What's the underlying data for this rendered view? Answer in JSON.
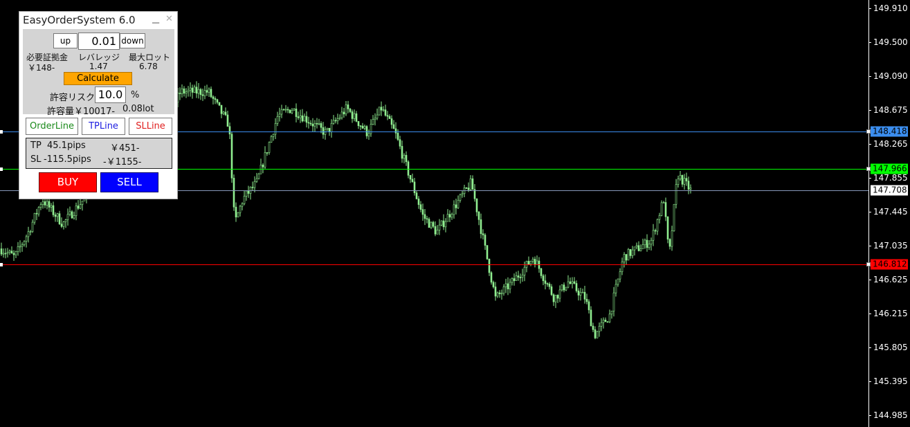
{
  "panel": {
    "title": "EasyOrderSystem 6.0",
    "minimize_icon": "minimize-icon",
    "close_icon": "close-icon",
    "lot": {
      "up_label": "up",
      "value": "0.01",
      "down_label": "down"
    },
    "margin": {
      "label": "必要証拠金",
      "value": "￥148-"
    },
    "leverage": {
      "label": "レバレッジ",
      "value": "1.47"
    },
    "max_lot": {
      "label": "最大ロット",
      "value": "6.78"
    },
    "calculate_label": "Calculate",
    "risk": {
      "label": "許容リスク",
      "value": "10.0",
      "unit": "%"
    },
    "allowance": {
      "label": "許容量￥10017-",
      "lot": "0.08lot"
    },
    "line_buttons": {
      "order": "OrderLine",
      "tp": "TPLine",
      "sl": "SLLine"
    },
    "tp": {
      "label": "TP",
      "pips": "45.1pips",
      "amount": "￥451-"
    },
    "sl": {
      "label": "SL",
      "pips": "-115.5pips",
      "amount": "-￥1155-"
    },
    "buy_label": "BUY",
    "sell_label": "SELL",
    "colors": {
      "calculate": "#ffa500",
      "buy": "#ff0000",
      "sell": "#0000ff",
      "order": "#1a8a1a",
      "tp": "#2020e0",
      "sl": "#e02020"
    }
  },
  "price_axis": {
    "ticks": [
      "149.910",
      "149.500",
      "149.090",
      "148.675",
      "148.265",
      "147.855",
      "147.445",
      "147.035",
      "146.625",
      "146.215",
      "145.805",
      "145.395",
      "144.985"
    ]
  },
  "lines": {
    "tp": {
      "price": "148.418",
      "color": "#3b8ef0"
    },
    "order": {
      "price": "147.966",
      "color": "#00ff00"
    },
    "current": {
      "price": "147.708",
      "color": "#ffffff"
    },
    "sl": {
      "price": "146.812",
      "color": "#ff0000"
    }
  },
  "candle_color": "#90ee90"
}
